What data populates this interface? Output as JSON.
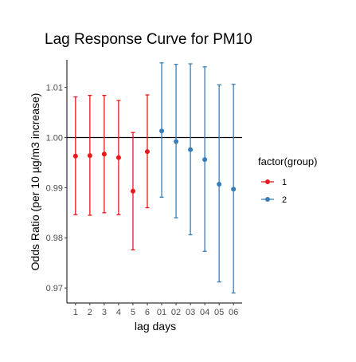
{
  "chart_data": {
    "type": "scatter",
    "title": "Lag Response Curve for PM10",
    "xlabel": "lag days",
    "ylabel": "Odds Ratio (per 10 µg/m3 increase)",
    "categories": [
      "1",
      "2",
      "3",
      "4",
      "5",
      "6",
      "01",
      "02",
      "03",
      "04",
      "05",
      "06"
    ],
    "ylim": [
      0.967,
      1.0155
    ],
    "yticks": [
      0.97,
      0.98,
      0.99,
      1.0,
      1.01
    ],
    "ytick_labels": [
      "0.97",
      "0.98",
      "0.99",
      "1.00",
      "1.01"
    ],
    "reference_line": 1.0,
    "grid": false,
    "legend": {
      "title": "factor(group)",
      "position": "right",
      "entries": [
        "1",
        "2"
      ]
    },
    "series": [
      {
        "name": "1",
        "color": "#e41a1c",
        "points": [
          {
            "x": "1",
            "y": 0.9963,
            "lower": 0.9846,
            "upper": 1.0081
          },
          {
            "x": "2",
            "y": 0.9964,
            "lower": 0.9845,
            "upper": 1.0084
          },
          {
            "x": "3",
            "y": 0.9967,
            "lower": 0.985,
            "upper": 1.0084
          },
          {
            "x": "4",
            "y": 0.996,
            "lower": 0.9846,
            "upper": 1.0074
          },
          {
            "x": "5",
            "y": 0.9893,
            "lower": 0.9776,
            "upper": 1.001
          },
          {
            "x": "6",
            "y": 0.9972,
            "lower": 0.986,
            "upper": 1.0085
          }
        ]
      },
      {
        "name": "2",
        "color": "#377eb8",
        "points": [
          {
            "x": "01",
            "y": 1.0013,
            "lower": 0.9881,
            "upper": 1.0149
          },
          {
            "x": "02",
            "y": 0.9992,
            "lower": 0.984,
            "upper": 1.0146
          },
          {
            "x": "03",
            "y": 0.9976,
            "lower": 0.9806,
            "upper": 1.0147
          },
          {
            "x": "04",
            "y": 0.9956,
            "lower": 0.9773,
            "upper": 1.0141
          },
          {
            "x": "05",
            "y": 0.9907,
            "lower": 0.9712,
            "upper": 1.0105
          },
          {
            "x": "06",
            "y": 0.9897,
            "lower": 0.969,
            "upper": 1.0106
          }
        ]
      }
    ]
  }
}
